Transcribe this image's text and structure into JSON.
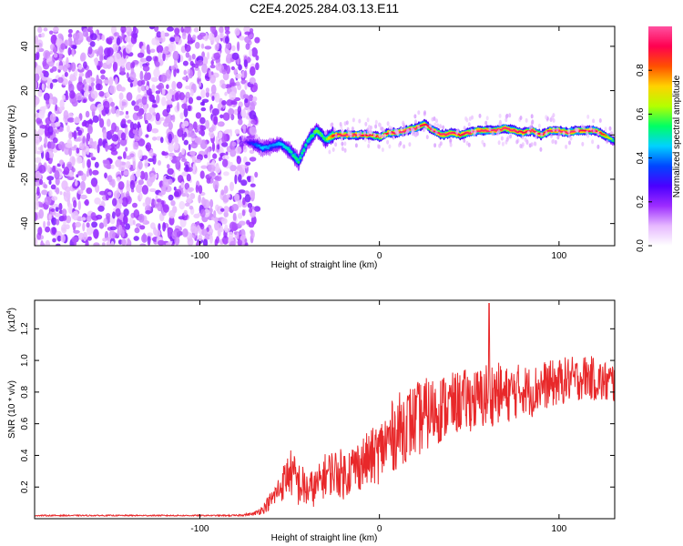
{
  "title": "C2E4.2025.284.03.13.E11",
  "chart_data": [
    {
      "type": "heatmap",
      "title": "C2E4.2025.284.03.13.E11",
      "xlabel": "Height of straight line (km)",
      "ylabel": "Frequency (Hz)",
      "xlim": [
        -192,
        131
      ],
      "ylim": [
        -50,
        49
      ],
      "xticks": [
        -100,
        0,
        100
      ],
      "xtick_labels": [
        "-100",
        "0",
        "100"
      ],
      "yticks": [
        -40,
        -20,
        0,
        20,
        40
      ],
      "ytick_labels": [
        "-40",
        "-20",
        "0",
        "20",
        "40"
      ],
      "colorbar": {
        "label": "Normalized spectral amplitude",
        "range": [
          0,
          1
        ],
        "ticks": [
          0,
          0.2,
          0.4,
          0.6,
          0.8
        ],
        "tick_labels": [
          "0.0",
          "0.2",
          "0.4",
          "0.6",
          "0.8"
        ],
        "colormap": [
          "#ffffff",
          "#e6b8ff",
          "#9d2cff",
          "#4a00ff",
          "#0046ff",
          "#00d2ff",
          "#00ff64",
          "#b4ff00",
          "#ffd200",
          "#ff5000",
          "#ff0050",
          "#ff50a0"
        ]
      },
      "noise_region_x": [
        -192,
        -68
      ],
      "ridge": {
        "x": [
          -75,
          -70,
          -65,
          -60,
          -55,
          -50,
          -45,
          -40,
          -35,
          -30,
          -25,
          -20,
          -15,
          -10,
          -5,
          0,
          5,
          10,
          15,
          20,
          25,
          30,
          35,
          40,
          45,
          50,
          55,
          60,
          65,
          70,
          75,
          80,
          85,
          90,
          95,
          100,
          105,
          110,
          115,
          120,
          125,
          131
        ],
        "freq": [
          -3,
          -4,
          -6,
          -5,
          -4,
          -7,
          -12,
          -3,
          2,
          -2,
          0,
          0,
          0,
          0,
          0,
          -1,
          1,
          1,
          2,
          3,
          5,
          2,
          0,
          1,
          0,
          1,
          2,
          2,
          2,
          3,
          2,
          1,
          2,
          0,
          2,
          2,
          1,
          2,
          2,
          2,
          0,
          -3
        ],
        "amplitude": [
          0.2,
          0.35,
          0.45,
          0.4,
          0.45,
          0.5,
          0.55,
          0.5,
          0.6,
          0.55,
          0.9,
          0.95,
          0.95,
          0.9,
          0.9,
          0.85,
          0.9,
          0.95,
          0.95,
          0.95,
          0.9,
          0.92,
          0.95,
          0.95,
          0.9,
          0.95,
          0.95,
          0.95,
          0.95,
          0.95,
          0.95,
          0.9,
          0.95,
          0.9,
          0.95,
          0.95,
          0.95,
          0.95,
          0.9,
          0.95,
          0.85,
          0.5
        ]
      }
    },
    {
      "type": "line",
      "xlabel": "Height of straight line (km)",
      "ylabel": "SNR (10 * v/v)",
      "y_multiplier": "(x10",
      "y_multiplier_exp": "4",
      "y_multiplier_close": ")",
      "xlim": [
        -192,
        131
      ],
      "ylim": [
        0,
        1.38
      ],
      "xticks": [
        -100,
        0,
        100
      ],
      "xtick_labels": [
        "-100",
        "0",
        "100"
      ],
      "yticks": [
        0.2,
        0.4,
        0.6,
        0.8,
        1.0,
        1.2
      ],
      "ytick_labels": [
        "0.2",
        "0.4",
        "0.6",
        "0.8",
        "1.0",
        "1.2"
      ],
      "series": [
        {
          "name": "SNR",
          "color": "#e8282a",
          "x": [
            -192,
            -180,
            -160,
            -140,
            -120,
            -100,
            -90,
            -80,
            -70,
            -65,
            -60,
            -55,
            -50,
            -45,
            -40,
            -35,
            -30,
            -25,
            -20,
            -15,
            -10,
            -5,
            0,
            5,
            10,
            15,
            20,
            25,
            30,
            35,
            40,
            45,
            50,
            55,
            60,
            65,
            70,
            75,
            80,
            85,
            90,
            95,
            100,
            105,
            110,
            115,
            120,
            125,
            131
          ],
          "y": [
            0.02,
            0.02,
            0.02,
            0.02,
            0.02,
            0.02,
            0.02,
            0.02,
            0.03,
            0.06,
            0.12,
            0.2,
            0.3,
            0.22,
            0.18,
            0.2,
            0.28,
            0.3,
            0.28,
            0.32,
            0.35,
            0.38,
            0.42,
            0.5,
            0.55,
            0.6,
            0.62,
            0.65,
            0.68,
            0.7,
            0.72,
            0.74,
            0.75,
            0.75,
            0.78,
            0.8,
            0.78,
            0.8,
            0.82,
            0.8,
            0.84,
            0.85,
            0.86,
            0.88,
            0.88,
            0.9,
            0.88,
            0.86,
            0.86
          ],
          "noise_amplitude": [
            0.004,
            0.004,
            0.004,
            0.004,
            0.004,
            0.004,
            0.004,
            0.005,
            0.01,
            0.03,
            0.06,
            0.1,
            0.15,
            0.15,
            0.12,
            0.12,
            0.14,
            0.15,
            0.16,
            0.16,
            0.17,
            0.18,
            0.2,
            0.22,
            0.24,
            0.24,
            0.24,
            0.24,
            0.22,
            0.22,
            0.2,
            0.2,
            0.2,
            0.2,
            0.22,
            0.2,
            0.18,
            0.18,
            0.16,
            0.16,
            0.16,
            0.15,
            0.15,
            0.15,
            0.14,
            0.14,
            0.14,
            0.14,
            0.14
          ],
          "peak": {
            "x": 61,
            "y": 1.36
          }
        }
      ]
    }
  ]
}
